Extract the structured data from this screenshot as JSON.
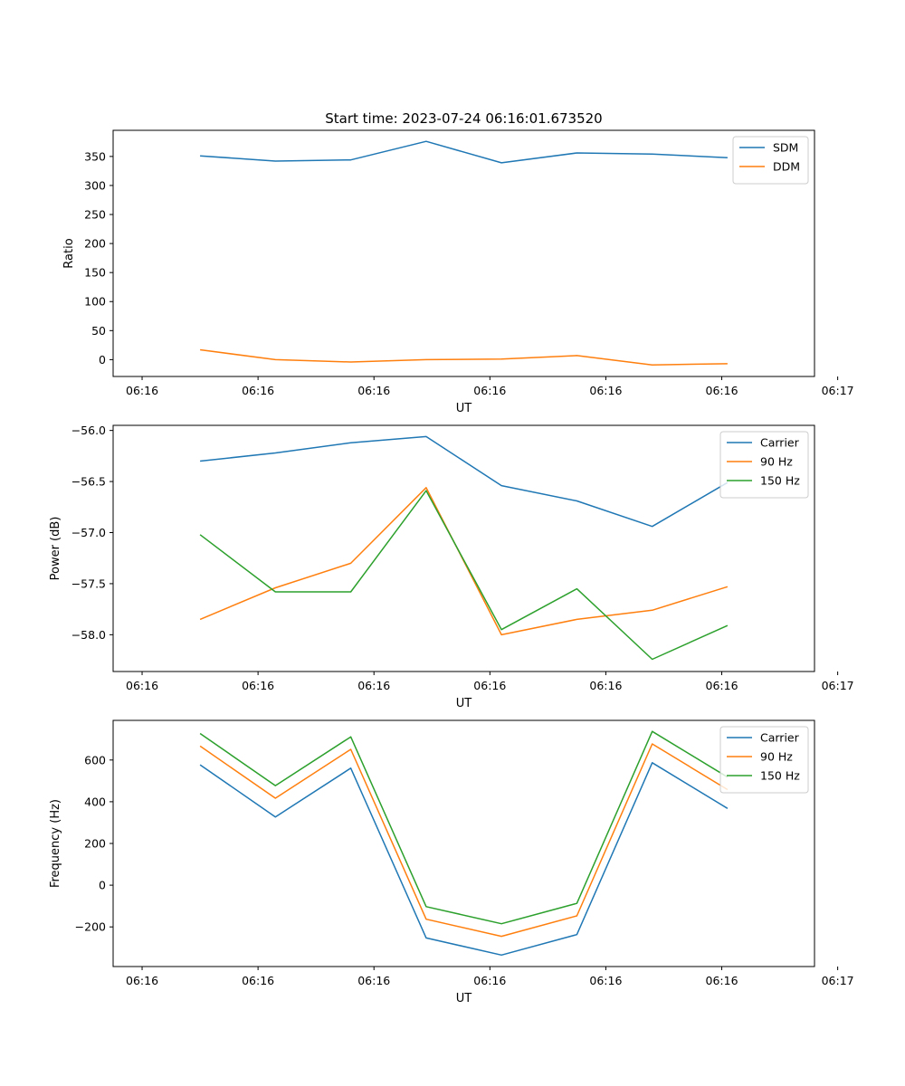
{
  "title": "Start time: 2023-07-24 06:16:01.673520",
  "colors": {
    "blue": "#1f77b4",
    "orange": "#ff7f0e",
    "green": "#2ca02c",
    "axis": "#000000",
    "legend_border": "#cccccc"
  },
  "chart_data": [
    {
      "type": "line",
      "title": "Start time: 2023-07-24 06:16:01.673520",
      "xlabel": "UT",
      "ylabel": "Ratio",
      "xlim": [
        -0.25,
        5.8
      ],
      "ylim": [
        -29,
        395
      ],
      "x_ticks": [
        0,
        1,
        2,
        3,
        4,
        5,
        6
      ],
      "x_tick_labels": [
        "06:16",
        "06:16",
        "06:16",
        "06:16",
        "06:16",
        "06:16",
        "06:17"
      ],
      "y_ticks": [
        0,
        50,
        100,
        150,
        200,
        250,
        300,
        350
      ],
      "y_tick_labels": [
        "0",
        "50",
        "100",
        "150",
        "200",
        "250",
        "300",
        "350"
      ],
      "grid": false,
      "legend": "top-right",
      "x": [
        0.5,
        1.15,
        1.8,
        2.45,
        3.1,
        3.75,
        4.4,
        5.05
      ],
      "series": [
        {
          "name": "SDM",
          "color": "#1f77b4",
          "values": [
            351,
            342,
            344,
            376,
            339,
            356,
            354,
            348
          ]
        },
        {
          "name": "DDM",
          "color": "#ff7f0e",
          "values": [
            17,
            0,
            -4,
            0,
            1,
            7,
            -9,
            -7
          ]
        }
      ]
    },
    {
      "type": "line",
      "xlabel": "UT",
      "ylabel": "Power (dB)",
      "xlim": [
        -0.25,
        5.8
      ],
      "ylim": [
        -58.36,
        -55.95
      ],
      "x_ticks": [
        0,
        1,
        2,
        3,
        4,
        5,
        6
      ],
      "x_tick_labels": [
        "06:16",
        "06:16",
        "06:16",
        "06:16",
        "06:16",
        "06:16",
        "06:17"
      ],
      "y_ticks": [
        -56.0,
        -56.5,
        -57.0,
        -57.5,
        -58.0
      ],
      "y_tick_labels": [
        "−56.0",
        "−56.5",
        "−57.0",
        "−57.5",
        "−58.0"
      ],
      "grid": false,
      "legend": "top-right",
      "x": [
        0.5,
        1.15,
        1.8,
        2.45,
        3.1,
        3.75,
        4.4,
        5.05
      ],
      "series": [
        {
          "name": "Carrier",
          "color": "#1f77b4",
          "values": [
            -56.3,
            -56.22,
            -56.12,
            -56.06,
            -56.54,
            -56.69,
            -56.94,
            -56.51
          ]
        },
        {
          "name": "90 Hz",
          "color": "#ff7f0e",
          "values": [
            -57.85,
            -57.54,
            -57.3,
            -56.56,
            -58.0,
            -57.85,
            -57.76,
            -57.53
          ]
        },
        {
          "name": "150 Hz",
          "color": "#2ca02c",
          "values": [
            -57.02,
            -57.58,
            -57.58,
            -56.59,
            -57.95,
            -57.55,
            -58.24,
            -57.91
          ]
        }
      ]
    },
    {
      "type": "line",
      "xlabel": "UT",
      "ylabel": "Frequency (Hz)",
      "xlim": [
        -0.25,
        5.8
      ],
      "ylim": [
        -390,
        790
      ],
      "x_ticks": [
        0,
        1,
        2,
        3,
        4,
        5,
        6
      ],
      "x_tick_labels": [
        "06:16",
        "06:16",
        "06:16",
        "06:16",
        "06:16",
        "06:16",
        "06:17"
      ],
      "y_ticks": [
        -200,
        0,
        200,
        400,
        600
      ],
      "y_tick_labels": [
        "−200",
        "0",
        "200",
        "400",
        "600"
      ],
      "grid": false,
      "legend": "top-right",
      "x": [
        0.5,
        1.15,
        1.8,
        2.45,
        3.1,
        3.75,
        4.4,
        5.05
      ],
      "series": [
        {
          "name": "Carrier",
          "color": "#1f77b4",
          "values": [
            577,
            327,
            561,
            -253,
            -335,
            -237,
            587,
            368
          ]
        },
        {
          "name": "90 Hz",
          "color": "#ff7f0e",
          "values": [
            667,
            417,
            651,
            -163,
            -245,
            -147,
            677,
            458
          ]
        },
        {
          "name": "150 Hz",
          "color": "#2ca02c",
          "values": [
            727,
            477,
            711,
            -103,
            -185,
            -87,
            737,
            518
          ]
        }
      ]
    }
  ]
}
